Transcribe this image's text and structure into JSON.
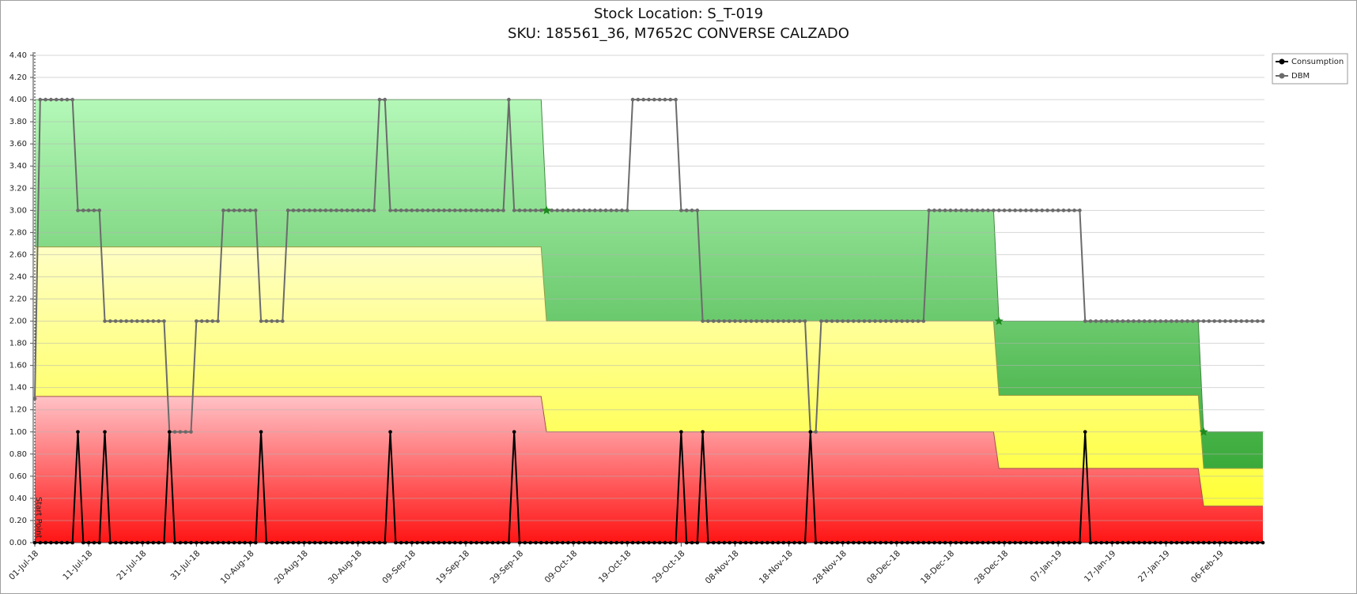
{
  "chart_data": {
    "type": "line",
    "title": "Stock Location: S_T-019",
    "subtitle": "SKU: 185561_36, M7652C CONVERSE CALZADO",
    "start_label": "Start Point",
    "x": [
      "01-Jul-18",
      "02-Jul-18",
      "03-Jul-18",
      "04-Jul-18",
      "05-Jul-18",
      "06-Jul-18",
      "07-Jul-18",
      "08-Jul-18",
      "09-Jul-18",
      "10-Jul-18",
      "11-Jul-18",
      "12-Jul-18",
      "13-Jul-18",
      "14-Jul-18",
      "15-Jul-18",
      "16-Jul-18",
      "17-Jul-18",
      "18-Jul-18",
      "19-Jul-18",
      "20-Jul-18",
      "21-Jul-18",
      "22-Jul-18",
      "23-Jul-18",
      "24-Jul-18",
      "25-Jul-18",
      "26-Jul-18",
      "27-Jul-18",
      "28-Jul-18",
      "29-Jul-18",
      "30-Jul-18",
      "31-Jul-18",
      "01-Aug-18",
      "02-Aug-18",
      "03-Aug-18",
      "04-Aug-18",
      "05-Aug-18",
      "06-Aug-18",
      "07-Aug-18",
      "08-Aug-18",
      "09-Aug-18",
      "10-Aug-18",
      "11-Aug-18",
      "12-Aug-18",
      "13-Aug-18",
      "14-Aug-18",
      "15-Aug-18",
      "16-Aug-18",
      "17-Aug-18",
      "18-Aug-18",
      "19-Aug-18",
      "20-Aug-18",
      "21-Aug-18",
      "22-Aug-18",
      "23-Aug-18",
      "24-Aug-18",
      "25-Aug-18",
      "26-Aug-18",
      "27-Aug-18",
      "28-Aug-18",
      "29-Aug-18",
      "30-Aug-18",
      "31-Aug-18",
      "01-Sep-18",
      "02-Sep-18",
      "03-Sep-18",
      "04-Sep-18",
      "05-Sep-18",
      "06-Sep-18",
      "07-Sep-18",
      "08-Sep-18",
      "09-Sep-18",
      "10-Sep-18",
      "11-Sep-18",
      "12-Sep-18",
      "13-Sep-18",
      "14-Sep-18",
      "15-Sep-18",
      "16-Sep-18",
      "17-Sep-18",
      "18-Sep-18",
      "19-Sep-18",
      "20-Sep-18",
      "21-Sep-18",
      "22-Sep-18",
      "23-Sep-18",
      "24-Sep-18",
      "25-Sep-18",
      "26-Sep-18",
      "27-Sep-18",
      "28-Sep-18",
      "29-Sep-18",
      "30-Sep-18",
      "01-Oct-18",
      "02-Oct-18",
      "03-Oct-18",
      "04-Oct-18",
      "05-Oct-18",
      "06-Oct-18",
      "07-Oct-18",
      "08-Oct-18",
      "09-Oct-18",
      "10-Oct-18",
      "11-Oct-18",
      "12-Oct-18",
      "13-Oct-18",
      "14-Oct-18",
      "15-Oct-18",
      "16-Oct-18",
      "17-Oct-18",
      "18-Oct-18",
      "19-Oct-18",
      "20-Oct-18",
      "21-Oct-18",
      "22-Oct-18",
      "23-Oct-18",
      "24-Oct-18",
      "25-Oct-18",
      "26-Oct-18",
      "27-Oct-18",
      "28-Oct-18",
      "29-Oct-18",
      "30-Oct-18",
      "31-Oct-18",
      "01-Nov-18",
      "02-Nov-18",
      "03-Nov-18",
      "04-Nov-18",
      "05-Nov-18",
      "06-Nov-18",
      "07-Nov-18",
      "08-Nov-18",
      "09-Nov-18",
      "10-Nov-18",
      "11-Nov-18",
      "12-Nov-18",
      "13-Nov-18",
      "14-Nov-18",
      "15-Nov-18",
      "16-Nov-18",
      "17-Nov-18",
      "18-Nov-18",
      "19-Nov-18",
      "20-Nov-18",
      "21-Nov-18",
      "22-Nov-18",
      "23-Nov-18",
      "24-Nov-18",
      "25-Nov-18",
      "26-Nov-18",
      "27-Nov-18",
      "28-Nov-18",
      "29-Nov-18",
      "30-Nov-18",
      "01-Dec-18",
      "02-Dec-18",
      "03-Dec-18",
      "04-Dec-18",
      "05-Dec-18",
      "06-Dec-18",
      "07-Dec-18",
      "08-Dec-18",
      "09-Dec-18",
      "10-Dec-18",
      "11-Dec-18",
      "12-Dec-18",
      "13-Dec-18",
      "14-Dec-18",
      "15-Dec-18",
      "16-Dec-18",
      "17-Dec-18",
      "18-Dec-18",
      "19-Dec-18",
      "20-Dec-18",
      "21-Dec-18",
      "22-Dec-18",
      "23-Dec-18",
      "24-Dec-18",
      "25-Dec-18",
      "26-Dec-18",
      "27-Dec-18",
      "28-Dec-18",
      "29-Dec-18",
      "30-Dec-18",
      "31-Dec-18",
      "01-Jan-19",
      "02-Jan-19",
      "03-Jan-19",
      "04-Jan-19",
      "05-Jan-19",
      "06-Jan-19",
      "07-Jan-19",
      "08-Jan-19",
      "09-Jan-19",
      "10-Jan-19",
      "11-Jan-19",
      "12-Jan-19",
      "13-Jan-19",
      "14-Jan-19",
      "15-Jan-19",
      "16-Jan-19",
      "17-Jan-19",
      "18-Jan-19",
      "19-Jan-19",
      "20-Jan-19",
      "21-Jan-19",
      "22-Jan-19",
      "23-Jan-19",
      "24-Jan-19",
      "25-Jan-19",
      "26-Jan-19",
      "27-Jan-19",
      "28-Jan-19",
      "29-Jan-19",
      "30-Jan-19",
      "31-Jan-19",
      "01-Feb-19",
      "02-Feb-19",
      "03-Feb-19",
      "04-Feb-19",
      "05-Feb-19",
      "06-Feb-19",
      "07-Feb-19",
      "08-Feb-19",
      "09-Feb-19",
      "10-Feb-19",
      "11-Feb-19",
      "12-Feb-19",
      "13-Feb-19",
      "14-Feb-19"
    ],
    "series": [
      {
        "name": "Consumption",
        "color": "#000000",
        "values": [
          0,
          0,
          0,
          0,
          0,
          0,
          0,
          0,
          1,
          0,
          0,
          0,
          0,
          1,
          0,
          0,
          0,
          0,
          0,
          0,
          0,
          0,
          0,
          0,
          0,
          1,
          0,
          0,
          0,
          0,
          0,
          0,
          0,
          0,
          0,
          0,
          0,
          0,
          0,
          0,
          0,
          0,
          1,
          0,
          0,
          0,
          0,
          0,
          0,
          0,
          0,
          0,
          0,
          0,
          0,
          0,
          0,
          0,
          0,
          0,
          0,
          0,
          0,
          0,
          0,
          0,
          1,
          0,
          0,
          0,
          0,
          0,
          0,
          0,
          0,
          0,
          0,
          0,
          0,
          0,
          0,
          0,
          0,
          0,
          0,
          0,
          0,
          0,
          0,
          1,
          0,
          0,
          0,
          0,
          0,
          0,
          0,
          0,
          0,
          0,
          0,
          0,
          0,
          0,
          0,
          0,
          0,
          0,
          0,
          0,
          0,
          0,
          0,
          0,
          0,
          0,
          0,
          0,
          0,
          0,
          1,
          0,
          0,
          0,
          1,
          0,
          0,
          0,
          0,
          0,
          0,
          0,
          0,
          0,
          0,
          0,
          0,
          0,
          0,
          0,
          0,
          0,
          0,
          0,
          1,
          0,
          0,
          0,
          0,
          0,
          0,
          0,
          0,
          0,
          0,
          0,
          0,
          0,
          0,
          0,
          0,
          0,
          0,
          0,
          0,
          0,
          0,
          0,
          0,
          0,
          0,
          0,
          0,
          0,
          0,
          0,
          0,
          0,
          0,
          0,
          0,
          0,
          0,
          0,
          0,
          0,
          0,
          0,
          0,
          0,
          0,
          0,
          0,
          0,
          0,
          1,
          0,
          0,
          0,
          0,
          0,
          0,
          0,
          0,
          0,
          0,
          0,
          0,
          0,
          0,
          0,
          0,
          0,
          0,
          0,
          0,
          0,
          0,
          0,
          0,
          0,
          0,
          0,
          0,
          0,
          0,
          0,
          0,
          0
        ]
      },
      {
        "name": "DBM",
        "color": "#6b6b6b",
        "values": [
          1.3,
          4,
          4,
          4,
          4,
          4,
          4,
          4,
          3,
          3,
          3,
          3,
          3,
          2,
          2,
          2,
          2,
          2,
          2,
          2,
          2,
          2,
          2,
          2,
          2,
          1,
          1,
          1,
          1,
          1,
          2,
          2,
          2,
          2,
          2,
          3,
          3,
          3,
          3,
          3,
          3,
          3,
          2,
          2,
          2,
          2,
          2,
          3,
          3,
          3,
          3,
          3,
          3,
          3,
          3,
          3,
          3,
          3,
          3,
          3,
          3,
          3,
          3,
          3,
          4,
          4,
          3,
          3,
          3,
          3,
          3,
          3,
          3,
          3,
          3,
          3,
          3,
          3,
          3,
          3,
          3,
          3,
          3,
          3,
          3,
          3,
          3,
          3,
          4,
          3,
          3,
          3,
          3,
          3,
          3,
          3,
          3,
          3,
          3,
          3,
          3,
          3,
          3,
          3,
          3,
          3,
          3,
          3,
          3,
          3,
          3,
          4,
          4,
          4,
          4,
          4,
          4,
          4,
          4,
          4,
          3,
          3,
          3,
          3,
          2,
          2,
          2,
          2,
          2,
          2,
          2,
          2,
          2,
          2,
          2,
          2,
          2,
          2,
          2,
          2,
          2,
          2,
          2,
          2,
          1,
          1,
          2,
          2,
          2,
          2,
          2,
          2,
          2,
          2,
          2,
          2,
          2,
          2,
          2,
          2,
          2,
          2,
          2,
          2,
          2,
          2,
          3,
          3,
          3,
          3,
          3,
          3,
          3,
          3,
          3,
          3,
          3,
          3,
          3,
          3,
          3,
          3,
          3,
          3,
          3,
          3,
          3,
          3,
          3,
          3,
          3,
          3,
          3,
          3,
          3,
          2,
          2,
          2,
          2,
          2,
          2,
          2,
          2,
          2,
          2,
          2,
          2,
          2,
          2,
          2,
          2,
          2,
          2,
          2,
          2,
          2,
          2,
          2,
          2,
          2,
          2,
          2,
          2,
          2,
          2,
          2,
          2,
          2,
          2
        ]
      }
    ],
    "zones": [
      {
        "start": "01-Jul-18",
        "end": "03-Oct-18",
        "red": 1.32,
        "yellow": 2.67,
        "green": 4.0
      },
      {
        "start": "04-Oct-18",
        "end": "26-Dec-18",
        "red": 1.0,
        "yellow": 2.0,
        "green": 3.0
      },
      {
        "start": "27-Dec-18",
        "end": "02-Feb-19",
        "red": 0.67,
        "yellow": 1.33,
        "green": 2.0
      },
      {
        "start": "03-Feb-19",
        "end": "14-Feb-19",
        "red": 0.33,
        "yellow": 0.67,
        "green": 1.0
      }
    ],
    "zone_colors": {
      "red": [
        "#ffc2c6",
        "#ff1414"
      ],
      "yellow": [
        "#ffffc4",
        "#ffff22"
      ],
      "green": [
        "#b4f8b8",
        "#219a21"
      ],
      "marker": "#1e8a1e"
    },
    "xlim": [
      "01-Jul-18",
      "14-Feb-19"
    ],
    "xticks": [
      "01-Jul-18",
      "11-Jul-18",
      "21-Jul-18",
      "31-Jul-18",
      "10-Aug-18",
      "20-Aug-18",
      "30-Aug-18",
      "09-Sep-18",
      "19-Sep-18",
      "29-Sep-18",
      "09-Oct-18",
      "19-Oct-18",
      "29-Oct-18",
      "08-Nov-18",
      "18-Nov-18",
      "28-Nov-18",
      "08-Dec-18",
      "18-Dec-18",
      "28-Dec-18",
      "07-Jan-19",
      "17-Jan-19",
      "27-Jan-19",
      "06-Feb-19"
    ],
    "ylim": [
      0,
      4.4
    ],
    "yticks": [
      {
        "value": 0,
        "label": "0.00"
      },
      {
        "value": 0.2,
        "label": "0.20"
      },
      {
        "value": 0.4,
        "label": "0.40"
      },
      {
        "value": 0.6,
        "label": "0.60"
      },
      {
        "value": 0.8,
        "label": "0.80"
      },
      {
        "value": 1,
        "label": "1.00"
      },
      {
        "value": 1.2,
        "label": "1.20"
      },
      {
        "value": 1.4,
        "label": "1.40"
      },
      {
        "value": 1.6,
        "label": "1.60"
      },
      {
        "value": 1.8,
        "label": "1.80"
      },
      {
        "value": 2,
        "label": "2.00"
      },
      {
        "value": 2.2,
        "label": "2.20"
      },
      {
        "value": 2.4,
        "label": "2.40"
      },
      {
        "value": 2.6,
        "label": "2.60"
      },
      {
        "value": 2.8,
        "label": "2.80"
      },
      {
        "value": 3,
        "label": "3.00"
      },
      {
        "value": 3.2,
        "label": "3.20"
      },
      {
        "value": 3.4,
        "label": "3.40"
      },
      {
        "value": 3.6,
        "label": "3.60"
      },
      {
        "value": 3.8,
        "label": "3.80"
      },
      {
        "value": 4,
        "label": "4.00"
      },
      {
        "value": 4.2,
        "label": "4.20"
      },
      {
        "value": 4.4,
        "label": "4.40"
      }
    ],
    "grid": true,
    "legend": "top-right"
  }
}
